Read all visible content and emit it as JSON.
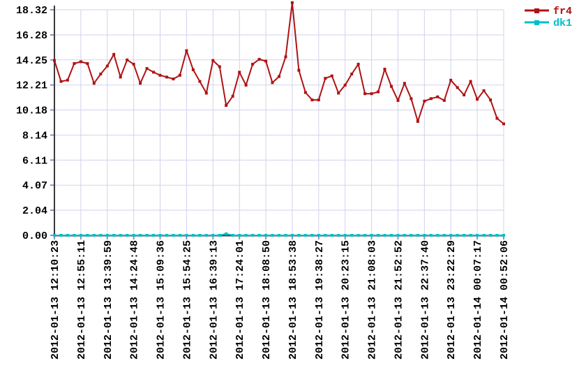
{
  "chart_data": {
    "type": "line",
    "title": "",
    "xlabel": "",
    "ylabel": "",
    "grid": true,
    "legend_position": "top-right-outside",
    "ylim": [
      0,
      18.32
    ],
    "y_tick_labels": [
      "18.32",
      "16.28",
      "14.25",
      "12.21",
      "10.18",
      "8.14",
      "6.11",
      "4.07",
      "2.04",
      "0.00"
    ],
    "y_tick_values": [
      18.32,
      16.28,
      14.25,
      12.21,
      10.18,
      8.14,
      6.11,
      4.07,
      2.04,
      0
    ],
    "x_ticks_every": 4,
    "x_tick_labels": [
      "2012-01-13 12:10:23",
      "2012-01-13 12:55:11",
      "2012-01-13 13:39:59",
      "2012-01-13 14:24:48",
      "2012-01-13 15:09:36",
      "2012-01-13 15:54:25",
      "2012-01-13 16:39:13",
      "2012-01-13 17:24:01",
      "2012-01-13 18:08:50",
      "2012-01-13 18:53:38",
      "2012-01-13 19:38:27",
      "2012-01-13 20:23:15",
      "2012-01-13 21:08:03",
      "2012-01-13 21:52:52",
      "2012-01-13 22:37:40",
      "2012-01-13 23:22:29",
      "2012-01-14 00:07:17",
      "2012-01-14 00:52:06"
    ],
    "series": [
      {
        "name": "fr4",
        "color": "#b01212",
        "values": [
          14.2,
          12.5,
          12.6,
          13.95,
          14.1,
          13.95,
          12.35,
          13.1,
          13.75,
          14.7,
          12.85,
          14.25,
          13.9,
          12.35,
          13.55,
          13.25,
          13.0,
          12.85,
          12.7,
          13.0,
          15.0,
          13.45,
          12.5,
          11.55,
          14.2,
          13.7,
          10.55,
          11.3,
          13.25,
          12.2,
          13.9,
          14.3,
          14.15,
          12.4,
          12.9,
          14.5,
          18.9,
          13.4,
          11.6,
          11.0,
          11.0,
          12.75,
          12.95,
          11.55,
          12.2,
          13.1,
          13.9,
          11.5,
          11.5,
          11.65,
          13.5,
          12.1,
          10.95,
          12.35,
          11.1,
          9.25,
          10.9,
          11.1,
          11.25,
          10.95,
          12.6,
          12.0,
          11.4,
          12.5,
          11.05,
          11.75,
          11.0,
          9.5,
          9.05
        ]
      },
      {
        "name": "dk1",
        "color": "#00bfc4",
        "values": [
          0,
          0,
          0,
          0,
          0,
          0,
          0,
          0,
          0,
          0,
          0,
          0,
          0,
          0,
          0,
          0,
          0,
          0,
          0,
          0,
          0,
          0,
          0,
          0,
          0,
          0,
          0.12,
          0,
          0,
          0,
          0,
          0,
          0,
          0,
          0,
          0,
          0,
          0,
          0,
          0,
          0,
          0,
          0,
          0,
          0,
          0,
          0,
          0,
          0,
          0,
          0,
          0,
          0,
          0,
          0,
          0,
          0,
          0,
          0,
          0,
          0,
          0,
          0,
          0,
          0,
          0,
          0,
          0,
          0
        ]
      }
    ],
    "colors": {
      "background": "#ffffff",
      "grid": "#d2d2ee",
      "axis": "#3a3a3a",
      "tick": "#8f8fc0",
      "text": "#000000"
    }
  }
}
